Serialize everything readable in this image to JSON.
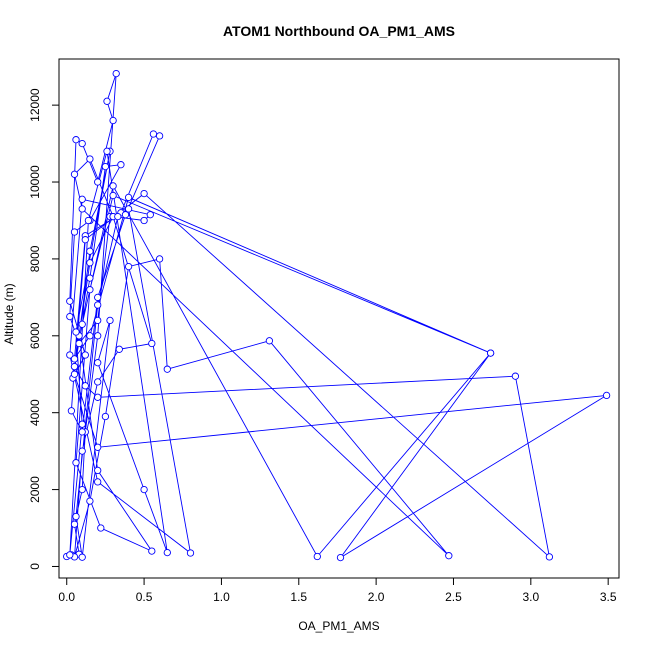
{
  "chart_data": {
    "type": "line",
    "title": "ATOM1 Northbound OA_PM1_AMS",
    "xlabel": "OA_PM1_AMS",
    "ylabel": "Altitude (m)",
    "xlim": [
      -0.05,
      3.57
    ],
    "ylim": [
      -300,
      13200
    ],
    "xticks": [
      0.0,
      0.5,
      1.0,
      1.5,
      2.0,
      2.5,
      3.0,
      3.5
    ],
    "xtick_labels": [
      "0.0",
      "0.5",
      "1.0",
      "1.5",
      "2.0",
      "2.5",
      "3.0",
      "3.5"
    ],
    "yticks": [
      0,
      2000,
      4000,
      6000,
      8000,
      10000,
      12000
    ],
    "ytick_labels": [
      "0",
      "2000",
      "4000",
      "6000",
      "8000",
      "10000",
      "12000"
    ],
    "grid": false,
    "legend": "none",
    "series_color": "#0000ff",
    "series": [
      {
        "x": [
          0.0,
          0.03,
          0.08,
          0.05,
          0.1,
          0.12,
          0.2,
          0.32,
          0.26,
          0.3,
          0.2,
          0.1,
          0.06,
          0.02,
          0.12,
          0.04,
          0.15,
          0.25,
          0.35,
          0.15,
          0.05,
          0.02,
          0.08,
          0.2,
          0.28,
          0.35,
          0.56,
          0.6,
          0.38,
          0.2,
          0.1,
          0.03,
          0.05,
          0.15,
          0.3,
          0.55,
          0.34,
          0.2,
          0.1,
          0.05,
          0.15,
          0.25,
          0.4,
          0.6,
          0.65,
          1.31,
          2.47,
          0.1,
          0.05,
          0.15,
          0.3,
          0.5,
          0.54,
          0.1,
          0.02,
          0.2,
          0.8,
          0.4,
          0.12,
          0.05,
          0.15,
          0.4,
          2.74,
          1.62,
          0.3,
          0.1,
          0.05,
          0.12,
          0.2,
          2.9,
          3.12,
          0.5,
          0.12,
          0.05,
          0.2,
          3.49,
          1.77,
          2.74,
          0.3,
          0.15,
          0.06,
          0.22,
          0.55,
          0.2,
          0.08,
          0.15,
          0.28,
          0.06,
          0.1,
          0.02,
          0.14,
          0.26,
          0.65,
          0.5,
          0.2,
          0.28,
          0.1,
          0.06,
          0.2,
          0.33
        ],
        "y": [
          260,
          300,
          320,
          1100,
          2000,
          3500,
          6000,
          12820,
          12100,
          11600,
          10000,
          11000,
          11100,
          6900,
          5500,
          4900,
          7500,
          10400,
          10450,
          9000,
          8700,
          6500,
          5800,
          6400,
          9100,
          9200,
          11250,
          11200,
          9150,
          7000,
          3500,
          4050,
          5200,
          7900,
          9100,
          5800,
          5650,
          4800,
          3000,
          250,
          1700,
          3900,
          7800,
          8000,
          5130,
          5870,
          280,
          9300,
          10200,
          10600,
          9100,
          9000,
          9150,
          9550,
          5500,
          2200,
          350,
          9300,
          8600,
          5400,
          6000,
          9600,
          5550,
          260,
          9900,
          6300,
          5200,
          4700,
          4400,
          4950,
          250,
          9700,
          8500,
          5000,
          3100,
          4450,
          230,
          5550,
          9650,
          7200,
          2700,
          1000,
          400,
          2500,
          6000,
          8200,
          10800,
          6100,
          3700,
          300,
          9000,
          10800,
          360,
          2000,
          5300,
          6400,
          240,
          1300,
          6800,
          9100
        ]
      }
    ]
  }
}
